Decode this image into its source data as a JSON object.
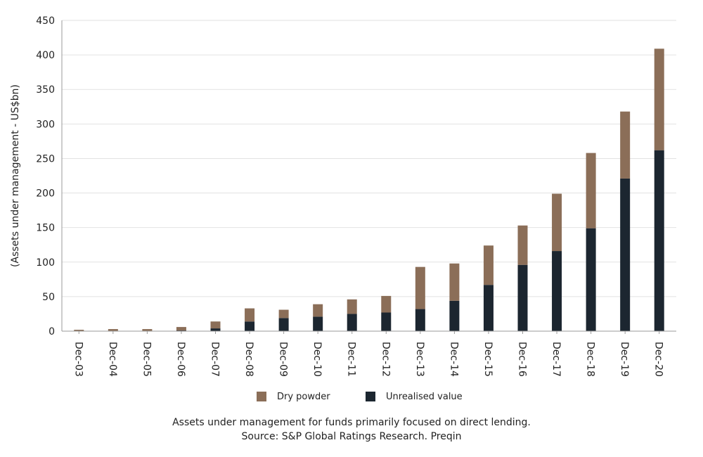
{
  "chart_data": {
    "type": "bar",
    "stacked": true,
    "categories": [
      "Dec-03",
      "Dec-04",
      "Dec-05",
      "Dec-06",
      "Dec-07",
      "Dec-08",
      "Dec-09",
      "Dec-10",
      "Dec-11",
      "Dec-12",
      "Dec-13",
      "Dec-14",
      "Dec-15",
      "Dec-16",
      "Dec-17",
      "Dec-18",
      "Dec-19",
      "Dec-20"
    ],
    "series": [
      {
        "name": "Unrealised value",
        "color": "#1c2630",
        "values": [
          0,
          0,
          0,
          1,
          4,
          14,
          19,
          21,
          25,
          27,
          32,
          44,
          67,
          96,
          116,
          149,
          221,
          262
        ]
      },
      {
        "name": "Dry powder",
        "color": "#8b6e58",
        "values": [
          2,
          3,
          3,
          5,
          10,
          19,
          12,
          18,
          21,
          24,
          61,
          54,
          57,
          57,
          83,
          109,
          97,
          147
        ]
      }
    ],
    "ylabel": "(Assets under management - US$bn)",
    "xlabel": "",
    "ylim": [
      0,
      450
    ],
    "yticks": [
      0,
      50,
      100,
      150,
      200,
      250,
      300,
      350,
      400,
      450
    ],
    "grid": true,
    "legend": {
      "placement": "bottom",
      "order": [
        "Dry powder",
        "Unrealised value"
      ]
    }
  },
  "caption": {
    "line1": "Assets under management for funds primarily focused on direct lending.",
    "line2": "Source: S&P Global Ratings Research. Preqin"
  }
}
